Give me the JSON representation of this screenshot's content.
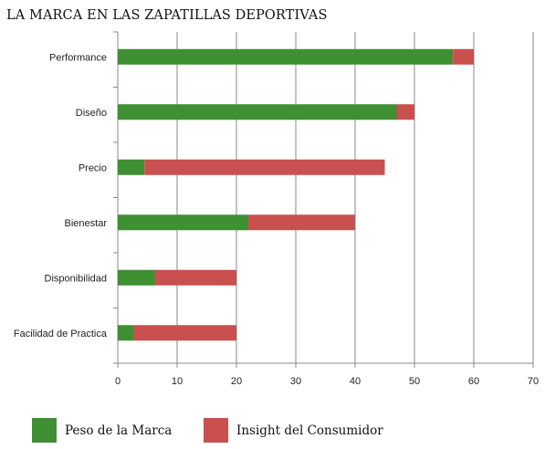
{
  "chart_data": {
    "type": "bar",
    "orientation": "horizontal",
    "stacked": true,
    "title": "LA MARCA EN LAS ZAPATILLAS DEPORTIVAS",
    "categories": [
      "Performance",
      "Diseño",
      "Precio",
      "Bienestar",
      "Disponibilidad",
      "Facilidad de Practica"
    ],
    "series": [
      {
        "name": "Peso de la Marca",
        "color": "#3f8f33",
        "values": [
          56.5,
          47,
          4.5,
          22,
          6.3,
          2.7
        ]
      },
      {
        "name": "Insight del Consumidor",
        "color": "#c9504f",
        "values": [
          3.5,
          3,
          40.5,
          18,
          13.7,
          17.3
        ]
      }
    ],
    "xlim": [
      0,
      70
    ],
    "xticks": [
      0,
      10,
      20,
      30,
      40,
      50,
      60,
      70
    ],
    "grid": true,
    "legend_position": "bottom"
  }
}
